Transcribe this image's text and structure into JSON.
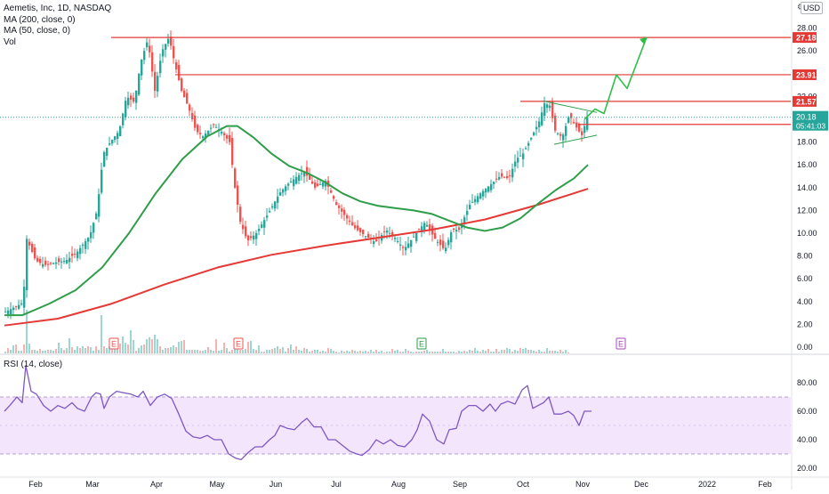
{
  "header": {
    "symbol_line": "Aemetis, Inc, 1D, NASDAQ",
    "ma200_label": "MA (200, close, 0)",
    "ma50_label": "MA (50, close, 0)",
    "vol_label": "Vol",
    "currency": "USD",
    "rsi_label": "RSI (14, close)"
  },
  "colors": {
    "up": "#26a69a",
    "down": "#ef5350",
    "ma200": "#e53935",
    "ma50": "#2e9e4a",
    "hline": "#e53935",
    "rsi_line": "#7e57c2",
    "rsi_band": "#f3e5fc",
    "last_price_bg": "#26a69a",
    "level_label_bg": "#e53935",
    "trend_projection": "#2fbf4a"
  },
  "chart_data": [
    {
      "type": "candlestick",
      "title": "Aemetis, Inc, 1D, NASDAQ",
      "y_axis": {
        "range": [
          0,
          28.8
        ],
        "ticks": [
          "0.00",
          "2.00",
          "4.00",
          "6.00",
          "8.00",
          "10.00",
          "12.00",
          "14.00",
          "16.00",
          "18.00",
          "22.00",
          "26.00",
          "28.00"
        ],
        "side": "right"
      },
      "x_axis": {
        "ticks": [
          "Feb",
          "Mar",
          "Apr",
          "May",
          "Jun",
          "Jul",
          "Aug",
          "Sep",
          "Oct",
          "Nov",
          "Dec",
          "2022",
          "Feb"
        ]
      },
      "price_path": [
        [
          0,
          3.1
        ],
        [
          20,
          3.9
        ],
        [
          24,
          9.5
        ],
        [
          34,
          7.6
        ],
        [
          44,
          7.2
        ],
        [
          55,
          7.4
        ],
        [
          68,
          7.6
        ],
        [
          80,
          8.3
        ],
        [
          95,
          9.8
        ],
        [
          103,
          12
        ],
        [
          110,
          17
        ],
        [
          118,
          18
        ],
        [
          128,
          19
        ],
        [
          136,
          22
        ],
        [
          145,
          21.5
        ],
        [
          152,
          25
        ],
        [
          160,
          27
        ],
        [
          168,
          22.5
        ],
        [
          176,
          26
        ],
        [
          184,
          27.2
        ],
        [
          190,
          25
        ],
        [
          198,
          22.5
        ],
        [
          206,
          21
        ],
        [
          214,
          19
        ],
        [
          222,
          18.5
        ],
        [
          234,
          19.5
        ],
        [
          242,
          19
        ],
        [
          252,
          18
        ],
        [
          258,
          14
        ],
        [
          264,
          11
        ],
        [
          272,
          9.3
        ],
        [
          282,
          10
        ],
        [
          296,
          11.8
        ],
        [
          308,
          13.5
        ],
        [
          316,
          14.2
        ],
        [
          328,
          15
        ],
        [
          336,
          15.4
        ],
        [
          348,
          14
        ],
        [
          360,
          14.6
        ],
        [
          372,
          12.5
        ],
        [
          382,
          11.5
        ],
        [
          392,
          10.5
        ],
        [
          404,
          9.8
        ],
        [
          416,
          9.2
        ],
        [
          428,
          10.3
        ],
        [
          438,
          9.6
        ],
        [
          448,
          8.6
        ],
        [
          460,
          9.8
        ],
        [
          472,
          11
        ],
        [
          482,
          9.6
        ],
        [
          494,
          8.5
        ],
        [
          502,
          10.3
        ],
        [
          510,
          10.3
        ],
        [
          522,
          12.5
        ],
        [
          534,
          13.5
        ],
        [
          546,
          14.3
        ],
        [
          556,
          15
        ],
        [
          566,
          14.8
        ],
        [
          574,
          16.5
        ],
        [
          582,
          17
        ],
        [
          590,
          18.2
        ],
        [
          600,
          19.8
        ],
        [
          606,
          21.4
        ],
        [
          612,
          21.2
        ],
        [
          618,
          19
        ],
        [
          626,
          18.4
        ],
        [
          634,
          20.4
        ],
        [
          640,
          19.5
        ],
        [
          648,
          18.6
        ],
        [
          654,
          20.2
        ]
      ],
      "volume": [
        0.2,
        0.6,
        0.4,
        0.9,
        1,
        0.3,
        0.3,
        1,
        4.9,
        1.1,
        0.4,
        0.4,
        0.3,
        0.5,
        0.3,
        0.3,
        0.4,
        0.4,
        0.3,
        0.5,
        1.2,
        0.6,
        0.4,
        0.6,
        1.7,
        0.7,
        0.4,
        0.8,
        0.6,
        0.8,
        0.6,
        0.8,
        0.7,
        0.3,
        0.8,
        0.4,
        4.3,
        0.8,
        0.6,
        0.8,
        0.5,
        0.7,
        1.6,
        1.1,
        1.9,
        1.2,
        1,
        2.6,
        1.5,
        0.3,
        0.6,
        0.9,
        1,
        1.6,
        1.8,
        1.6,
        2.1,
        1.6,
        0.8,
        0.4,
        0.6,
        0.6,
        0.7,
        0.9,
        0.7,
        1.3,
        1.4,
        1.5,
        0.4,
        0.4,
        0.4,
        0.4,
        0.4,
        0.3,
        0.3,
        0.4,
        0.7,
        0.4,
        0.3,
        1.6,
        0.3,
        0.4,
        1.2,
        0.6,
        0.2,
        0.4,
        0.9,
        1.5,
        0.4,
        0.4,
        0.5,
        1.3,
        1.4,
        0.5,
        0.4,
        0.9,
        0.2,
        0.2,
        0.4,
        0.4,
        0.5,
        0.6,
        0.8,
        0.5,
        0.7,
        0.2,
        0.6,
        1,
        0.4,
        0.8,
        0.4,
        0.3,
        0.6,
        0.5,
        0.2,
        0.3,
        0.4,
        0.4,
        0.2,
        0.3,
        0.2,
        0.6,
        0.5,
        0.3,
        0.2,
        0.1,
        0.3,
        0.2,
        0.3,
        0.2,
        0.4,
        0.3,
        0.2,
        0.3,
        0.2,
        0.3,
        0.2,
        0.4,
        0.2,
        0.4,
        0.2,
        0.3,
        0.1,
        0.2,
        0.2,
        0.5,
        0.3,
        0.4,
        0.2,
        0.2,
        0.5,
        0.3,
        0.2,
        0.1,
        0.2,
        0.2,
        0.2,
        0.3,
        0.4,
        0.2,
        0.2,
        0.2,
        0.2,
        0.2,
        0.5,
        0.2,
        0.2,
        0.2,
        0.2,
        0.1,
        0.3,
        0.2,
        0.3,
        0.2,
        0.4,
        0.3,
        0.6,
        0.3,
        0.2,
        0.4,
        0.3,
        0.5,
        0.2,
        0.2,
        0.5,
        0.2,
        0.4,
        0.4,
        0.6,
        0.5,
        0.2,
        0.4,
        0.3,
        0.6,
        0.5,
        0.6,
        0.4,
        0.4,
        0.3,
        0.2,
        0.4,
        0.2,
        0.2,
        0.6,
        0.3,
        0.3,
        0.3,
        0.2,
        0.4,
        0.2,
        0.4,
        0.1
      ],
      "ma200": [
        [
          0,
          1.9
        ],
        [
          60,
          2.5
        ],
        [
          120,
          3.8
        ],
        [
          180,
          5.5
        ],
        [
          240,
          7
        ],
        [
          300,
          8.1
        ],
        [
          360,
          8.9
        ],
        [
          420,
          9.6
        ],
        [
          480,
          10.3
        ],
        [
          540,
          11.2
        ],
        [
          600,
          12.5
        ],
        [
          656,
          13.9
        ]
      ],
      "ma50": [
        [
          0,
          2.8
        ],
        [
          20,
          2.8
        ],
        [
          50,
          3.8
        ],
        [
          80,
          5
        ],
        [
          110,
          7
        ],
        [
          140,
          10
        ],
        [
          170,
          13.5
        ],
        [
          200,
          16.5
        ],
        [
          228,
          18.5
        ],
        [
          250,
          19.4
        ],
        [
          262,
          19.4
        ],
        [
          280,
          18.4
        ],
        [
          300,
          17
        ],
        [
          320,
          15.9
        ],
        [
          340,
          15.3
        ],
        [
          360,
          14.5
        ],
        [
          380,
          13.5
        ],
        [
          400,
          12.8
        ],
        [
          420,
          12.4
        ],
        [
          440,
          12.2
        ],
        [
          460,
          12
        ],
        [
          480,
          11.7
        ],
        [
          500,
          11.1
        ],
        [
          520,
          10.5
        ],
        [
          540,
          10.2
        ],
        [
          560,
          10.5
        ],
        [
          580,
          11.3
        ],
        [
          600,
          12.6
        ],
        [
          620,
          13.8
        ],
        [
          640,
          14.8
        ],
        [
          656,
          16
        ]
      ],
      "levels": [
        27.18,
        23.91,
        21.57,
        19.55
      ],
      "last_price": 20.18,
      "countdown": "05:41:03",
      "earnings_markers": [
        "E",
        "E",
        "E",
        "E"
      ],
      "triangle": {
        "upper": [
          [
            606,
            21.6
          ],
          [
            666,
            20.6
          ]
        ],
        "lower": [
          [
            618,
            17.8
          ],
          [
            666,
            18.6
          ]
        ]
      },
      "projection": [
        [
          652,
          20
        ],
        [
          664,
          20.9
        ],
        [
          674,
          20.5
        ],
        [
          688,
          23.9
        ],
        [
          700,
          22.7
        ],
        [
          722,
          27.2
        ]
      ]
    },
    {
      "type": "line",
      "title": "RSI (14, close)",
      "y_axis": {
        "range": [
          20,
          95
        ],
        "ticks": [
          "80.00",
          "60.00",
          "40.00",
          "20.00"
        ],
        "band": [
          30,
          70
        ]
      },
      "values": [
        [
          0,
          60
        ],
        [
          6,
          64
        ],
        [
          14,
          70
        ],
        [
          20,
          66
        ],
        [
          24,
          92
        ],
        [
          30,
          74
        ],
        [
          36,
          72
        ],
        [
          44,
          64
        ],
        [
          52,
          60
        ],
        [
          60,
          64
        ],
        [
          68,
          62
        ],
        [
          76,
          66
        ],
        [
          82,
          62
        ],
        [
          90,
          60
        ],
        [
          98,
          70
        ],
        [
          103,
          73
        ],
        [
          108,
          72
        ],
        [
          112,
          62
        ],
        [
          118,
          70
        ],
        [
          126,
          74
        ],
        [
          134,
          73
        ],
        [
          142,
          72
        ],
        [
          150,
          70
        ],
        [
          156,
          74
        ],
        [
          164,
          64
        ],
        [
          172,
          70
        ],
        [
          180,
          72
        ],
        [
          188,
          69
        ],
        [
          196,
          58
        ],
        [
          204,
          46
        ],
        [
          212,
          42
        ],
        [
          220,
          41
        ],
        [
          228,
          43
        ],
        [
          236,
          40
        ],
        [
          244,
          40
        ],
        [
          252,
          30
        ],
        [
          260,
          27
        ],
        [
          266,
          26
        ],
        [
          274,
          31
        ],
        [
          282,
          35
        ],
        [
          290,
          35
        ],
        [
          298,
          40
        ],
        [
          304,
          43
        ],
        [
          310,
          50
        ],
        [
          318,
          48
        ],
        [
          326,
          47
        ],
        [
          334,
          52
        ],
        [
          340,
          55
        ],
        [
          348,
          49
        ],
        [
          356,
          49
        ],
        [
          364,
          40
        ],
        [
          372,
          40
        ],
        [
          380,
          36
        ],
        [
          388,
          32
        ],
        [
          396,
          30
        ],
        [
          402,
          29
        ],
        [
          410,
          33
        ],
        [
          418,
          40
        ],
        [
          426,
          37
        ],
        [
          434,
          40
        ],
        [
          442,
          36
        ],
        [
          450,
          35
        ],
        [
          458,
          40
        ],
        [
          464,
          47
        ],
        [
          470,
          58
        ],
        [
          478,
          53
        ],
        [
          486,
          40
        ],
        [
          494,
          37
        ],
        [
          500,
          47
        ],
        [
          508,
          48
        ],
        [
          514,
          60
        ],
        [
          522,
          64
        ],
        [
          530,
          64
        ],
        [
          538,
          60
        ],
        [
          546,
          65
        ],
        [
          552,
          60
        ],
        [
          558,
          65
        ],
        [
          566,
          67
        ],
        [
          574,
          65
        ],
        [
          582,
          75
        ],
        [
          588,
          78
        ],
        [
          594,
          62
        ],
        [
          600,
          64
        ],
        [
          606,
          66
        ],
        [
          612,
          70
        ],
        [
          618,
          58
        ],
        [
          626,
          58
        ],
        [
          634,
          60
        ],
        [
          640,
          57
        ],
        [
          646,
          50
        ],
        [
          652,
          60
        ],
        [
          660,
          60
        ]
      ]
    }
  ]
}
